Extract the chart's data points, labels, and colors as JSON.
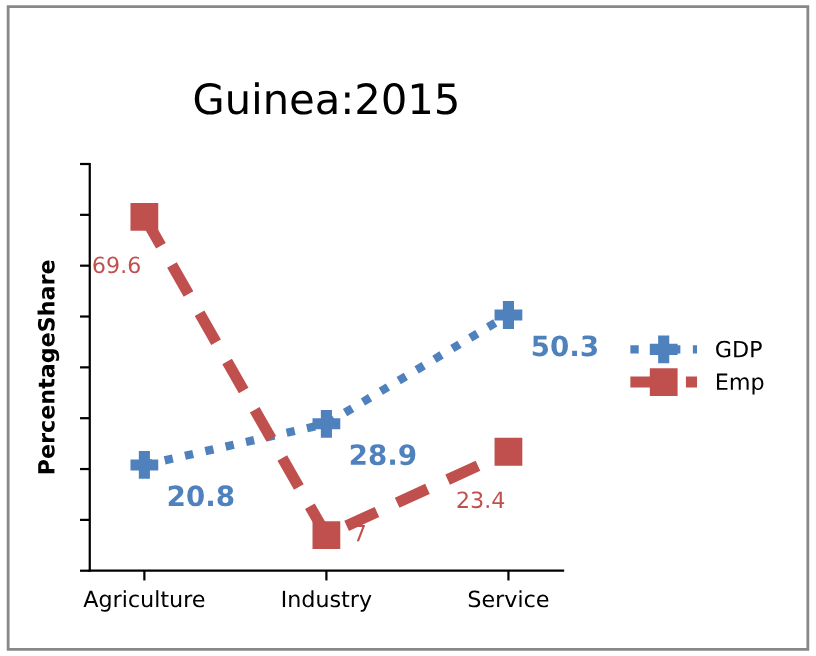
{
  "chart_data": {
    "type": "line",
    "title": "Guinea:2015",
    "ylabel": "PercentageShare",
    "categories": [
      "Agriculture",
      "Industry",
      "Service"
    ],
    "series": [
      {
        "name": "GDP",
        "color": "#4f81bd",
        "values": [
          20.8,
          28.9,
          50.3
        ],
        "marker": "cross",
        "line_style": "dotted"
      },
      {
        "name": "Emp",
        "color": "#c0504d",
        "values": [
          69.6,
          7,
          23.4
        ],
        "marker": "square",
        "line_style": "dashed"
      }
    ],
    "ylim": [
      0,
      80
    ],
    "yticks": [
      {
        "value": 0,
        "label": null
      },
      {
        "value": 10,
        "label": null
      },
      {
        "value": 20,
        "label": null
      },
      {
        "value": 30,
        "label": null
      },
      {
        "value": 40,
        "label": null
      },
      {
        "value": 50,
        "label": null
      },
      {
        "value": 60,
        "label": null
      },
      {
        "value": 70,
        "label": null
      },
      {
        "value": 80,
        "label": null
      }
    ],
    "data_labels": true,
    "legend": "right",
    "grid": false
  }
}
